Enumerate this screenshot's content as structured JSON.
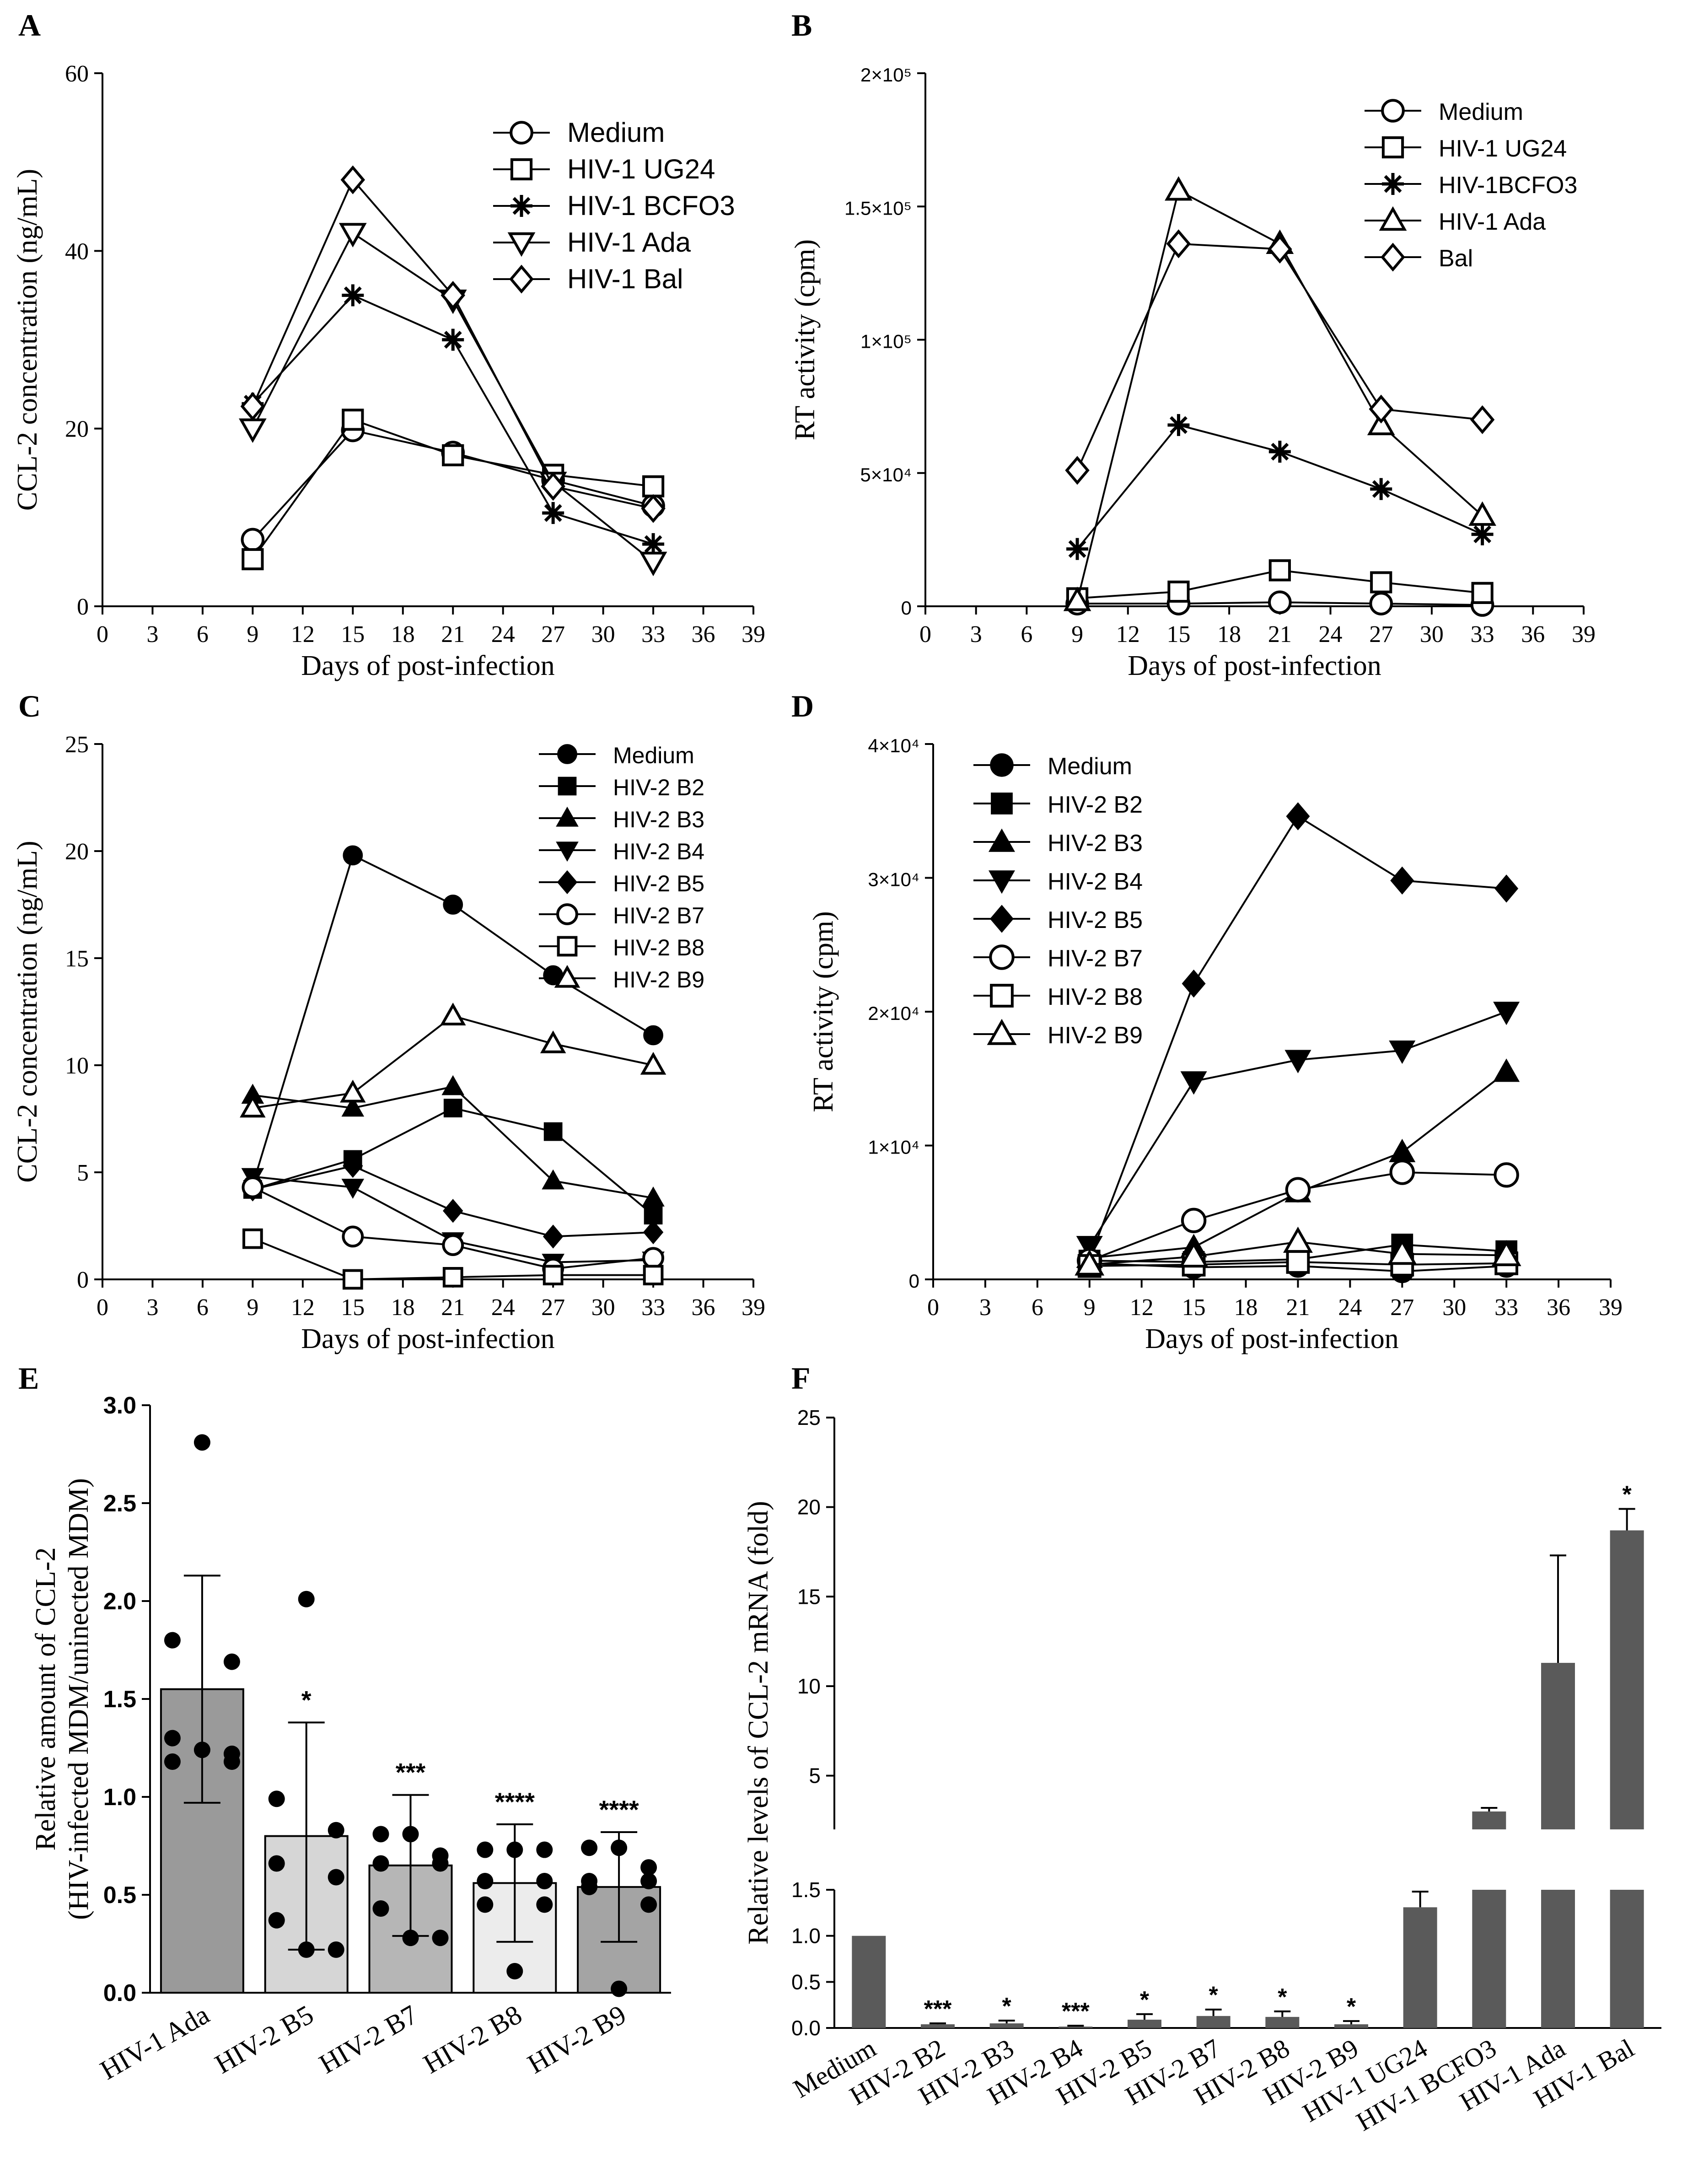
{
  "chart_data": [
    {
      "id": "A",
      "panel_label": "A",
      "type": "line",
      "xlabel": "Days of post-infection",
      "ylabel": "CCL-2 concentration (ng/mL)",
      "xlim": [
        0,
        39
      ],
      "xticks": [
        0,
        3,
        6,
        9,
        12,
        15,
        18,
        21,
        24,
        27,
        30,
        33,
        36,
        39
      ],
      "ylim": [
        0,
        60
      ],
      "yticks": [
        0,
        20,
        40,
        60
      ],
      "ytick_labels": [
        "0",
        "20",
        "40",
        "60"
      ],
      "legend_position": "top-right",
      "series": [
        {
          "name": "Medium",
          "marker": "circle",
          "x": [
            9,
            15,
            21,
            27,
            33
          ],
          "values": [
            7.5,
            19.8,
            17.3,
            14.2,
            11.3
          ]
        },
        {
          "name": "HIV-1 UG24",
          "marker": "square",
          "x": [
            9,
            15,
            21,
            27,
            33
          ],
          "values": [
            5.3,
            21.0,
            17.0,
            14.8,
            13.5
          ]
        },
        {
          "name": "HIV-1 BCFO3",
          "marker": "asterisk",
          "x": [
            9,
            15,
            21,
            27,
            33
          ],
          "values": [
            22.8,
            35.0,
            30.0,
            10.5,
            7.0
          ]
        },
        {
          "name": "HIV-1 Ada",
          "marker": "triangle-down",
          "x": [
            9,
            15,
            21,
            27,
            33
          ],
          "values": [
            20.0,
            42.0,
            34.5,
            14.0,
            5.0
          ]
        },
        {
          "name": "HIV-1 Bal",
          "marker": "diamond",
          "x": [
            9,
            15,
            21,
            27,
            33
          ],
          "values": [
            22.5,
            48.0,
            35.0,
            13.5,
            11.0
          ]
        }
      ]
    },
    {
      "id": "B",
      "panel_label": "B",
      "type": "line",
      "xlabel": "Days of post-infection",
      "ylabel": "RT activity (cpm)",
      "xlim": [
        0,
        39
      ],
      "xticks": [
        0,
        3,
        6,
        9,
        12,
        15,
        18,
        21,
        24,
        27,
        30,
        33,
        36,
        39
      ],
      "ylim": [
        0,
        200000
      ],
      "yticks": [
        0,
        50000,
        100000,
        150000,
        200000
      ],
      "ytick_labels": [
        "0",
        "5×10⁴",
        "1×10⁵",
        "1.5×10⁵",
        "2×10⁵"
      ],
      "legend_position": "top-right",
      "series": [
        {
          "name": "Medium",
          "marker": "circle",
          "x": [
            9,
            15,
            21,
            27,
            33
          ],
          "values": [
            1000,
            1000,
            1500,
            1000,
            500
          ]
        },
        {
          "name": "HIV-1 UG24",
          "marker": "square",
          "x": [
            9,
            15,
            21,
            27,
            33
          ],
          "values": [
            3000,
            5500,
            13500,
            9000,
            5000
          ]
        },
        {
          "name": "HIV-1BCFO3",
          "marker": "asterisk",
          "x": [
            9,
            15,
            21,
            27,
            33
          ],
          "values": [
            21500,
            68000,
            58000,
            44000,
            27000
          ]
        },
        {
          "name": "HIV-1 Ada",
          "marker": "triangle-up",
          "x": [
            9,
            15,
            21,
            27,
            33
          ],
          "values": [
            2000,
            156000,
            136000,
            68000,
            34000
          ]
        },
        {
          "name": "Bal",
          "marker": "diamond",
          "x": [
            9,
            15,
            21,
            27,
            33
          ],
          "values": [
            51000,
            136000,
            134000,
            74000,
            70000
          ]
        }
      ]
    },
    {
      "id": "C",
      "panel_label": "C",
      "type": "line",
      "xlabel": "Days of post-infection",
      "ylabel": "CCL-2 concentration (ng/mL)",
      "xlim": [
        0,
        39
      ],
      "xticks": [
        0,
        3,
        6,
        9,
        12,
        15,
        18,
        21,
        24,
        27,
        30,
        33,
        36,
        39
      ],
      "ylim": [
        0,
        25
      ],
      "yticks": [
        0,
        5,
        10,
        15,
        20,
        25
      ],
      "ytick_labels": [
        "0",
        "5",
        "10",
        "15",
        "20",
        "25"
      ],
      "legend_position": "top-right",
      "series": [
        {
          "name": "Medium",
          "marker": "circle-filled",
          "x": [
            9,
            15,
            21,
            27,
            33
          ],
          "values": [
            4.4,
            19.8,
            17.5,
            14.2,
            11.4
          ]
        },
        {
          "name": "HIV-2 B2",
          "marker": "square-filled",
          "x": [
            9,
            15,
            21,
            27,
            33
          ],
          "values": [
            4.2,
            5.6,
            8.0,
            6.9,
            3.0
          ]
        },
        {
          "name": "HIV-2 B3",
          "marker": "triangle-up-filled",
          "x": [
            9,
            15,
            21,
            27,
            33
          ],
          "values": [
            8.6,
            8.0,
            9.0,
            4.6,
            3.8
          ]
        },
        {
          "name": "HIV-2 B4",
          "marker": "triangle-down-filled",
          "x": [
            9,
            15,
            21,
            27,
            33
          ],
          "values": [
            4.8,
            4.3,
            1.8,
            0.8,
            0.9
          ]
        },
        {
          "name": "HIV-2 B5",
          "marker": "diamond-filled",
          "x": [
            9,
            15,
            21,
            27,
            33
          ],
          "values": [
            4.2,
            5.3,
            3.2,
            2.0,
            2.2
          ]
        },
        {
          "name": "HIV-2 B7",
          "marker": "circle",
          "x": [
            9,
            15,
            21,
            27,
            33
          ],
          "values": [
            4.3,
            2.0,
            1.6,
            0.5,
            1.0
          ]
        },
        {
          "name": "HIV-2 B8",
          "marker": "square",
          "x": [
            9,
            15,
            21,
            27,
            33
          ],
          "values": [
            1.9,
            0.0,
            0.1,
            0.2,
            0.2
          ]
        },
        {
          "name": "HIV-2 B9",
          "marker": "triangle-up",
          "x": [
            9,
            15,
            21,
            27,
            33
          ],
          "values": [
            8.0,
            8.7,
            12.3,
            11.0,
            10.0
          ]
        }
      ]
    },
    {
      "id": "D",
      "panel_label": "D",
      "type": "line",
      "xlabel": "Days of post-infection",
      "ylabel": "RT activity (cpm)",
      "xlim": [
        0,
        39
      ],
      "xticks": [
        0,
        3,
        6,
        9,
        12,
        15,
        18,
        21,
        24,
        27,
        30,
        33,
        36,
        39
      ],
      "ylim": [
        0,
        40000
      ],
      "yticks": [
        0,
        10000,
        20000,
        30000,
        40000
      ],
      "ytick_labels": [
        "0",
        "1×10⁴",
        "2×10⁴",
        "3×10⁴",
        "4×10⁴"
      ],
      "legend_position": "top-left",
      "series": [
        {
          "name": "Medium",
          "marker": "circle-filled",
          "x": [
            9,
            15,
            21,
            27,
            33
          ],
          "values": [
            1200,
            900,
            1000,
            600,
            1000
          ]
        },
        {
          "name": "HIV-2 B2",
          "marker": "square-filled",
          "x": [
            9,
            15,
            21,
            27,
            33
          ],
          "values": [
            1400,
            1300,
            1500,
            2600,
            2100
          ]
        },
        {
          "name": "HIV-2 B3",
          "marker": "triangle-up-filled",
          "x": [
            9,
            15,
            21,
            27,
            33
          ],
          "values": [
            1600,
            2400,
            6500,
            9500,
            15500
          ]
        },
        {
          "name": "HIV-2 B4",
          "marker": "triangle-down-filled",
          "x": [
            9,
            15,
            21,
            27,
            33
          ],
          "values": [
            2500,
            14800,
            16400,
            17100,
            20000
          ]
        },
        {
          "name": "HIV-2 B5",
          "marker": "diamond-filled",
          "x": [
            9,
            15,
            21,
            27,
            33
          ],
          "values": [
            1500,
            22100,
            34600,
            29800,
            29200
          ]
        },
        {
          "name": "HIV-2 B7",
          "marker": "circle",
          "x": [
            9,
            15,
            21,
            27,
            33
          ],
          "values": [
            1400,
            4400,
            6700,
            8000,
            7800
          ]
        },
        {
          "name": "HIV-2 B8",
          "marker": "square",
          "x": [
            9,
            15,
            21,
            27,
            33
          ],
          "values": [
            1000,
            1100,
            1300,
            1100,
            1200
          ]
        },
        {
          "name": "HIV-2 B9",
          "marker": "triangle-up",
          "x": [
            9,
            15,
            21,
            27,
            33
          ],
          "values": [
            1100,
            1700,
            2800,
            1900,
            1800
          ]
        }
      ]
    },
    {
      "id": "E",
      "panel_label": "E",
      "type": "bar",
      "ylabel_lines": [
        "Relative amount of CCL-2",
        "(HIV-infected MDM/uninected MDM)"
      ],
      "ylim": [
        0,
        3.0
      ],
      "yticks": [
        0,
        0.5,
        1,
        1.5,
        2,
        2.5,
        3
      ],
      "ytick_labels": [
        "0.0",
        "0.5",
        "1.0",
        "1.5",
        "2.0",
        "2.5",
        "3.0"
      ],
      "categories": [
        "HIV-1 Ada",
        "HIV-2 B5",
        "HIV-2 B7",
        "HIV-2 B8",
        "HIV-2 B9"
      ],
      "values": [
        1.55,
        0.8,
        0.65,
        0.56,
        0.54
      ],
      "errors": [
        0.58,
        0.58,
        0.36,
        0.3,
        0.28
      ],
      "significance": [
        "",
        "*",
        "***",
        "****",
        "****"
      ],
      "bar_colors": [
        "#9a9a9a",
        "#d6d6d6",
        "#b6b6b6",
        "#ececec",
        "#a4a4a4"
      ],
      "points": [
        [
          2.81,
          1.8,
          1.69,
          1.3,
          1.22,
          1.18,
          1.18,
          1.24
        ],
        [
          2.01,
          0.99,
          0.83,
          0.66,
          0.59,
          0.37,
          0.22,
          0.22
        ],
        [
          0.81,
          0.81,
          0.7,
          0.66,
          0.66,
          0.43,
          0.28,
          0.28
        ],
        [
          0.73,
          0.73,
          0.73,
          0.57,
          0.57,
          0.45,
          0.45,
          0.11
        ],
        [
          0.74,
          0.74,
          0.64,
          0.57,
          0.57,
          0.54,
          0.45,
          0.02
        ]
      ]
    },
    {
      "id": "F",
      "panel_label": "F",
      "type": "bar",
      "ylabel": "Relative levels of CCL-2 mRNA (fold)",
      "axis_break": true,
      "lower_ylim": [
        0,
        1.5
      ],
      "lower_yticks": [
        0,
        0.5,
        1,
        1.5
      ],
      "lower_ytick_labels": [
        "0.0",
        "0.5",
        "1.0",
        "1.5"
      ],
      "upper_ylim": [
        2,
        25
      ],
      "upper_yticks": [
        5,
        10,
        15,
        20,
        25
      ],
      "upper_ytick_labels": [
        "5",
        "10",
        "15",
        "20",
        "25"
      ],
      "categories": [
        "Medium",
        "HIV-2 B2",
        "HIV-2 B3",
        "HIV-2 B4",
        "HIV-2 B5",
        "HIV-2 B7",
        "HIV-2 B8",
        "HIV-2 B9",
        "HIV-1 UG24",
        "HIV-1 BCFO3",
        "HIV-1 Ada",
        "HIV-1 Bal"
      ],
      "values": [
        1.0,
        0.04,
        0.05,
        0.015,
        0.09,
        0.13,
        0.12,
        0.04,
        1.31,
        3.0,
        11.3,
        18.7
      ],
      "errors": [
        0,
        0.01,
        0.03,
        0.01,
        0.06,
        0.07,
        0.06,
        0.035,
        0.17,
        0.2,
        6.0,
        1.2
      ],
      "significance": [
        "",
        "***",
        "*",
        "***",
        "*",
        "*",
        "*",
        "*",
        "",
        "",
        "",
        "*"
      ],
      "bar_color": "#5a5a5a"
    }
  ]
}
